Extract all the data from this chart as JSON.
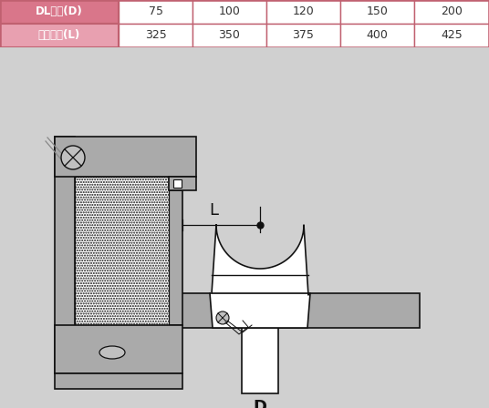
{
  "table_header_bg": "#d9768a",
  "table_row2_bg": "#e8a0b0",
  "table_border_color": "#c06070",
  "table_text_color": "#ffffff",
  "table_value_color": "#333333",
  "diagram_bg": "#d0d0d0",
  "row1_label": "DL지름(D)",
  "row2_label": "중심거리(L)",
  "row1_values": [
    "75",
    "100",
    "120",
    "150",
    "200"
  ],
  "row2_values": [
    "325",
    "350",
    "375",
    "400",
    "425"
  ],
  "label_L": "L",
  "label_D": "D",
  "fig_width": 5.36,
  "fig_height": 4.48,
  "dpi": 100,
  "gray_mid": "#aaaaaa",
  "gray_light": "#c0c0c0",
  "black": "#111111",
  "white": "#ffffff"
}
